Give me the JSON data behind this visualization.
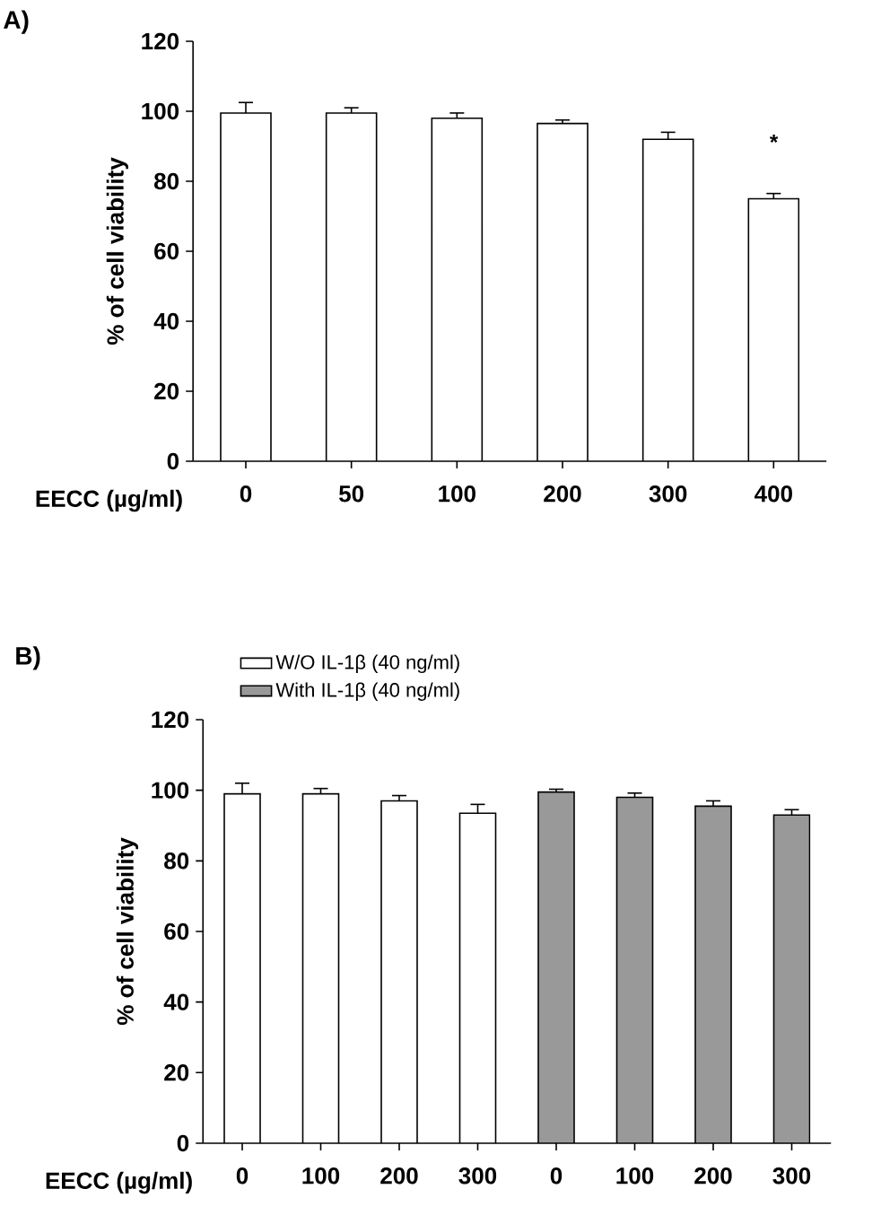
{
  "chart_data": [
    {
      "type": "bar",
      "title": "A)",
      "xlabel": "EECC (µg/ml)",
      "ylabel": "% of cell viability",
      "categories": [
        "0",
        "50",
        "100",
        "200",
        "300",
        "400"
      ],
      "values": [
        99.5,
        99.5,
        98,
        96.5,
        92,
        75
      ],
      "errors": [
        [
          99.5,
          102.5
        ],
        [
          99.5,
          101
        ],
        [
          98,
          99.5
        ],
        [
          96.5,
          97.5
        ],
        [
          92,
          94
        ],
        [
          75,
          76.5
        ]
      ],
      "color": "#ffffff",
      "ylim": [
        0,
        120
      ],
      "yticks": [
        0,
        20,
        40,
        60,
        80,
        100,
        120
      ],
      "annotations": [
        "*"
      ]
    },
    {
      "type": "bar",
      "title": "B)",
      "xlabel": "EECC (µg/ml)",
      "ylabel": "% of cell viability",
      "categories": [
        "0",
        "100",
        "200",
        "300",
        "0",
        "100",
        "200",
        "300"
      ],
      "series": [
        {
          "name": "W/O IL-1β (40 ng/ml)",
          "color": "#ffffff",
          "values": [
            99,
            99,
            97,
            93.5,
            null,
            null,
            null,
            null
          ],
          "errors": [
            [
              99,
              102
            ],
            [
              99,
              100.5
            ],
            [
              97,
              98.5
            ],
            [
              93.5,
              96
            ],
            null,
            null,
            null,
            null
          ]
        },
        {
          "name": "With IL-1β (40 ng/ml)",
          "color": "#999999",
          "values": [
            null,
            null,
            null,
            null,
            99.5,
            98,
            95.5,
            93
          ],
          "errors": [
            null,
            null,
            null,
            null,
            [
              99.5,
              100.3
            ],
            [
              98,
              99.2
            ],
            [
              95.5,
              97
            ],
            [
              93,
              94.5
            ]
          ]
        }
      ],
      "ylim": [
        0,
        120
      ],
      "yticks": [
        0,
        20,
        40,
        60,
        80,
        100,
        120
      ],
      "legend": "top"
    }
  ]
}
